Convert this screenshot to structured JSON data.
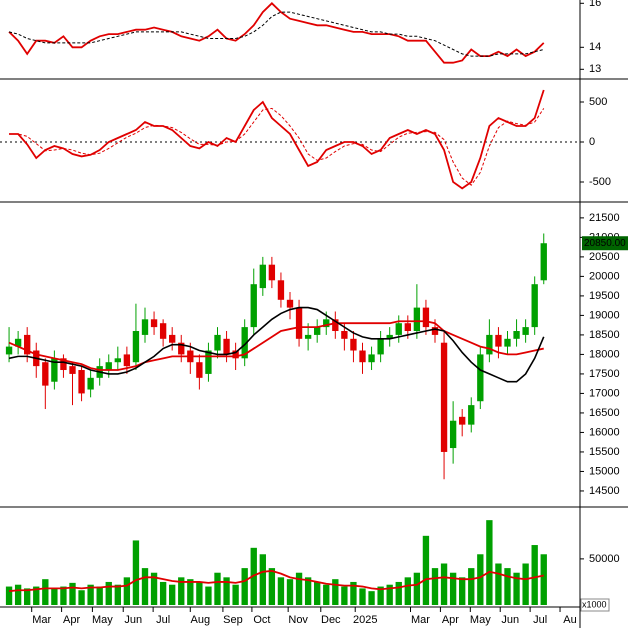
{
  "chart_data": [
    {
      "type": "line",
      "xlim": [
        0,
        64
      ],
      "ylim": [
        12.65,
        16.15
      ],
      "yticks": [
        13,
        14,
        16
      ],
      "x": [
        1,
        2,
        3,
        4,
        5,
        6,
        7,
        8,
        9,
        10,
        11,
        12,
        13,
        14,
        15,
        16,
        17,
        18,
        19,
        20,
        21,
        22,
        23,
        24,
        25,
        26,
        27,
        28,
        29,
        30,
        31,
        32,
        33,
        34,
        35,
        36,
        37,
        38,
        39,
        40,
        41,
        42,
        43,
        44,
        45,
        46,
        47,
        48,
        49,
        50,
        51,
        52,
        53,
        54,
        55,
        56,
        57,
        58,
        59,
        60
      ],
      "series": [
        {
          "color": "#e00000",
          "style": "solid",
          "values": [
            14.7,
            14.3,
            13.7,
            14.3,
            14.3,
            14.2,
            14.5,
            14.0,
            14.0,
            14.3,
            14.5,
            14.6,
            14.6,
            14.7,
            14.8,
            14.8,
            14.9,
            14.8,
            14.7,
            14.5,
            14.4,
            14.3,
            14.5,
            14.8,
            14.4,
            14.3,
            14.6,
            15.0,
            15.6,
            16.0,
            15.6,
            15.3,
            15.2,
            15.1,
            15.0,
            15.0,
            14.9,
            14.8,
            14.7,
            14.7,
            14.6,
            14.6,
            14.6,
            14.5,
            14.3,
            14.3,
            14.3,
            13.8,
            13.3,
            13.3,
            13.4,
            13.9,
            13.6,
            13.6,
            13.8,
            13.6,
            13.9,
            13.6,
            13.8,
            14.2
          ]
        },
        {
          "color": "#000000",
          "style": "dashed",
          "values": [
            14.7,
            14.6,
            14.4,
            14.3,
            14.2,
            14.2,
            14.2,
            14.2,
            14.2,
            14.2,
            14.3,
            14.4,
            14.5,
            14.6,
            14.7,
            14.7,
            14.7,
            14.7,
            14.7,
            14.7,
            14.6,
            14.5,
            14.4,
            14.4,
            14.4,
            14.4,
            14.5,
            14.7,
            15.0,
            15.4,
            15.6,
            15.6,
            15.5,
            15.4,
            15.3,
            15.2,
            15.1,
            15.0,
            14.9,
            14.8,
            14.7,
            14.7,
            14.6,
            14.6,
            14.5,
            14.5,
            14.4,
            14.3,
            14.1,
            13.9,
            13.7,
            13.6,
            13.6,
            13.6,
            13.7,
            13.7,
            13.7,
            13.7,
            13.8,
            13.9
          ]
        }
      ]
    },
    {
      "type": "line",
      "xlim": [
        0,
        64
      ],
      "ylim": [
        -725,
        750
      ],
      "yticks": [
        -500,
        0,
        500
      ],
      "reference_line": 0,
      "x": [
        1,
        2,
        3,
        4,
        5,
        6,
        7,
        8,
        9,
        10,
        11,
        12,
        13,
        14,
        15,
        16,
        17,
        18,
        19,
        20,
        21,
        22,
        23,
        24,
        25,
        26,
        27,
        28,
        29,
        30,
        31,
        32,
        33,
        34,
        35,
        36,
        37,
        38,
        39,
        40,
        41,
        42,
        43,
        44,
        45,
        46,
        47,
        48,
        49,
        50,
        51,
        52,
        53,
        54,
        55,
        56,
        57,
        58,
        59,
        60
      ],
      "series": [
        {
          "color": "#e00000",
          "style": "solid",
          "values": [
            100,
            100,
            -30,
            -200,
            -100,
            -50,
            -80,
            -150,
            -180,
            -160,
            -100,
            0,
            50,
            100,
            150,
            250,
            200,
            200,
            150,
            50,
            -50,
            -80,
            0,
            -50,
            50,
            0,
            200,
            400,
            500,
            300,
            200,
            100,
            -100,
            -300,
            -250,
            -100,
            -50,
            0,
            0,
            -50,
            -150,
            -100,
            50,
            100,
            150,
            100,
            150,
            100,
            -100,
            -500,
            -580,
            -500,
            -200,
            200,
            300,
            250,
            200,
            200,
            300,
            650
          ]
        },
        {
          "color": "#e00000",
          "style": "dashed",
          "values": [
            100,
            100,
            70,
            -20,
            -110,
            -100,
            -80,
            -100,
            -140,
            -160,
            -140,
            -80,
            -10,
            60,
            110,
            180,
            210,
            200,
            180,
            120,
            40,
            -30,
            -30,
            -40,
            0,
            10,
            100,
            250,
            400,
            420,
            330,
            200,
            50,
            -150,
            -230,
            -200,
            -120,
            -50,
            -20,
            -30,
            -100,
            -120,
            -30,
            60,
            110,
            120,
            130,
            120,
            30,
            -250,
            -450,
            -540,
            -380,
            -50,
            180,
            260,
            230,
            210,
            250,
            420
          ]
        }
      ]
    },
    {
      "type": "candlestick",
      "xlim": [
        0,
        64
      ],
      "ylim": [
        14140,
        21830
      ],
      "yticks": [
        14500,
        15000,
        15500,
        16000,
        16500,
        17000,
        17500,
        18000,
        18500,
        19000,
        19500,
        20000,
        20500,
        21000,
        21500
      ],
      "up_color": "#00a000",
      "down_color": "#e00000",
      "last_price": {
        "value": 20850,
        "label": "20850.00"
      },
      "x": [
        1,
        2,
        3,
        4,
        5,
        6,
        7,
        8,
        9,
        10,
        11,
        12,
        13,
        14,
        15,
        16,
        17,
        18,
        19,
        20,
        21,
        22,
        23,
        24,
        25,
        26,
        27,
        28,
        29,
        30,
        31,
        32,
        33,
        34,
        35,
        36,
        37,
        38,
        39,
        40,
        41,
        42,
        43,
        44,
        45,
        46,
        47,
        48,
        49,
        50,
        51,
        52,
        53,
        54,
        55,
        56,
        57,
        58,
        59,
        60
      ],
      "open": [
        18000,
        18200,
        18500,
        18100,
        17800,
        17300,
        17900,
        17700,
        17600,
        17100,
        17400,
        17600,
        17800,
        18000,
        17800,
        18500,
        18900,
        18800,
        18500,
        18300,
        18100,
        17800,
        17500,
        18100,
        18400,
        18100,
        17900,
        18700,
        19700,
        20300,
        19900,
        19400,
        19200,
        18400,
        18500,
        18700,
        18900,
        18600,
        18400,
        18100,
        17800,
        18000,
        18400,
        18500,
        18800,
        18600,
        19200,
        18700,
        18300,
        15600,
        16400,
        16200,
        16800,
        18000,
        18500,
        18200,
        18400,
        18500,
        18700,
        19900
      ],
      "high": [
        18700,
        18600,
        18700,
        18300,
        17900,
        18100,
        18000,
        17800,
        17700,
        17600,
        17900,
        18000,
        18200,
        18200,
        19300,
        19200,
        19100,
        18900,
        18700,
        18500,
        18300,
        18000,
        18300,
        18700,
        18600,
        18300,
        18900,
        20200,
        20500,
        20500,
        20100,
        19600,
        19400,
        18800,
        18900,
        19100,
        19100,
        18800,
        18600,
        18300,
        18200,
        18600,
        18700,
        19000,
        19000,
        19800,
        19400,
        18900,
        18600,
        16800,
        16600,
        16900,
        18200,
        18900,
        18700,
        18600,
        18900,
        18900,
        20000,
        21100
      ],
      "low": [
        17800,
        18000,
        17800,
        17400,
        16600,
        17100,
        17400,
        16700,
        16800,
        16900,
        17200,
        17400,
        17600,
        17500,
        17600,
        18300,
        18500,
        18200,
        18100,
        17800,
        17500,
        17100,
        17300,
        17900,
        17800,
        17600,
        17700,
        18500,
        19500,
        19700,
        19200,
        18900,
        18200,
        18100,
        18300,
        18500,
        18400,
        18100,
        17800,
        17500,
        17600,
        17800,
        18200,
        18300,
        18400,
        18400,
        18500,
        18300,
        14800,
        15200,
        15900,
        16000,
        16600,
        17800,
        17900,
        18000,
        18200,
        18300,
        18500,
        19800
      ],
      "close": [
        18200,
        18400,
        18000,
        17700,
        17200,
        17900,
        17600,
        17500,
        17000,
        17400,
        17700,
        17800,
        17900,
        17700,
        18600,
        18900,
        18700,
        18400,
        18300,
        18000,
        17800,
        17400,
        18100,
        18500,
        18000,
        17900,
        18700,
        19800,
        20300,
        19900,
        19400,
        19200,
        18400,
        18500,
        18700,
        18900,
        18600,
        18400,
        18100,
        17800,
        18000,
        18400,
        18500,
        18800,
        18600,
        19200,
        18700,
        18500,
        15500,
        16300,
        16200,
        16700,
        18000,
        18500,
        18200,
        18400,
        18600,
        18700,
        19800,
        20850
      ],
      "series": [
        {
          "color": "#e00000",
          "style": "solid",
          "values": [
            18300,
            18200,
            18100,
            18000,
            17950,
            17900,
            17850,
            17800,
            17750,
            17650,
            17600,
            17600,
            17600,
            17650,
            17700,
            17800,
            17850,
            17900,
            17950,
            17950,
            17950,
            17950,
            17950,
            17950,
            17950,
            17950,
            18000,
            18150,
            18300,
            18450,
            18600,
            18650,
            18700,
            18700,
            18700,
            18750,
            18800,
            18800,
            18800,
            18800,
            18800,
            18800,
            18800,
            18850,
            18850,
            18850,
            18850,
            18800,
            18600,
            18500,
            18400,
            18300,
            18200,
            18150,
            18050,
            18000,
            18000,
            18050,
            18100,
            18150
          ]
        },
        {
          "color": "#000000",
          "style": "solid",
          "values": [
            17900,
            17950,
            17950,
            17900,
            17850,
            17800,
            17800,
            17750,
            17700,
            17600,
            17550,
            17500,
            17500,
            17550,
            17650,
            17800,
            17950,
            18150,
            18250,
            18250,
            18200,
            18100,
            18050,
            18000,
            18000,
            18050,
            18250,
            18500,
            18700,
            18900,
            19050,
            19150,
            19200,
            19200,
            19150,
            19000,
            18850,
            18700,
            18550,
            18450,
            18400,
            18400,
            18400,
            18450,
            18500,
            18550,
            18600,
            18650,
            18600,
            18350,
            18050,
            17800,
            17600,
            17500,
            17400,
            17300,
            17300,
            17500,
            17900,
            18450
          ]
        }
      ]
    },
    {
      "type": "bar",
      "xlim": [
        0,
        64
      ],
      "ylim": [
        0,
        103000
      ],
      "yticks": [
        0,
        50000
      ],
      "color": "#00a000",
      "unit_label": "x1000",
      "x": [
        1,
        2,
        3,
        4,
        5,
        6,
        7,
        8,
        9,
        10,
        11,
        12,
        13,
        14,
        15,
        16,
        17,
        18,
        19,
        20,
        21,
        22,
        23,
        24,
        25,
        26,
        27,
        28,
        29,
        30,
        31,
        32,
        33,
        34,
        35,
        36,
        37,
        38,
        39,
        40,
        41,
        42,
        43,
        44,
        45,
        46,
        47,
        48,
        49,
        50,
        51,
        52,
        53,
        54,
        55,
        56,
        57,
        58,
        59,
        60
      ],
      "values": [
        20000,
        22000,
        18000,
        20000,
        28000,
        18000,
        20000,
        24000,
        16000,
        22000,
        20000,
        25000,
        22000,
        30000,
        70000,
        40000,
        35000,
        25000,
        22000,
        30000,
        28000,
        25000,
        20000,
        35000,
        30000,
        22000,
        40000,
        62000,
        55000,
        40000,
        30000,
        28000,
        35000,
        30000,
        25000,
        22000,
        28000,
        20000,
        25000,
        18000,
        15000,
        20000,
        22000,
        25000,
        30000,
        35000,
        75000,
        40000,
        45000,
        35000,
        30000,
        40000,
        55000,
        92000,
        45000,
        40000,
        35000,
        45000,
        65000,
        55000
      ],
      "series": [
        {
          "color": "#e00000",
          "style": "solid",
          "values": [
            15000,
            16000,
            16000,
            17000,
            18000,
            18000,
            18000,
            19000,
            18000,
            19000,
            19000,
            20000,
            20000,
            21000,
            27000,
            30000,
            30000,
            28000,
            26000,
            25000,
            25000,
            25000,
            24000,
            25000,
            25000,
            24000,
            26000,
            32000,
            36000,
            37000,
            34000,
            30000,
            28000,
            27000,
            25000,
            23000,
            22000,
            21000,
            21000,
            20000,
            18000,
            17000,
            18000,
            19000,
            21000,
            22000,
            28000,
            29000,
            30000,
            29000,
            28000,
            28000,
            30000,
            36000,
            34000,
            31000,
            29000,
            28000,
            30000,
            32000
          ]
        }
      ],
      "xticks": [
        {
          "value": 4.6,
          "label": "Mar"
        },
        {
          "value": 7.9,
          "label": "Apr"
        },
        {
          "value": 11.3,
          "label": "May"
        },
        {
          "value": 14.7,
          "label": "Jun"
        },
        {
          "value": 18,
          "label": "Jul"
        },
        {
          "value": 22.1,
          "label": "Aug"
        },
        {
          "value": 25.7,
          "label": "Sep"
        },
        {
          "value": 28.9,
          "label": "Oct"
        },
        {
          "value": 32.9,
          "label": "Nov"
        },
        {
          "value": 36.5,
          "label": "Dec"
        },
        {
          "value": 40.3,
          "label": "2025"
        },
        {
          "value": 46.4,
          "label": "Mar"
        },
        {
          "value": 49.7,
          "label": "Apr"
        },
        {
          "value": 53,
          "label": "May"
        },
        {
          "value": 56.3,
          "label": "Jun"
        },
        {
          "value": 59.6,
          "label": "Jul"
        },
        {
          "value": 62.9,
          "label": "Au"
        }
      ]
    }
  ]
}
